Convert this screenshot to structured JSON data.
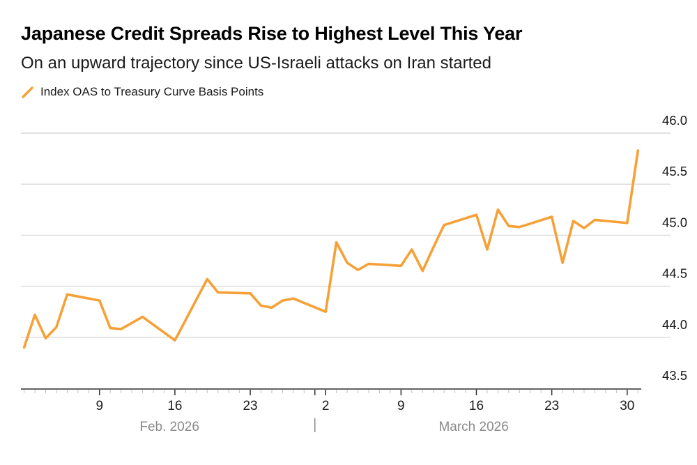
{
  "header": {
    "title": "Japanese Credit Spreads Rise to Highest Level This Year",
    "subtitle": "On an upward trajectory since US-Israeli attacks on Iran started"
  },
  "legend": {
    "label": "Index OAS to Treasury Curve Basis Points",
    "swatch_color": "#F6A137"
  },
  "chart_data": {
    "type": "line",
    "title": "Japanese Credit Spreads Rise to Highest Level This Year",
    "subtitle": "On an upward trajectory since US-Israeli attacks on Iran started",
    "grid": true,
    "legend_position": "top-left",
    "line_color": "#F6A137",
    "grid_color": "#D9D9D9",
    "axis_color": "#2e2e2e",
    "minor_tick_color": "#c0c0c0",
    "month_label_color": "#8a8a8a",
    "ylabel": "Index OAS to Treasury Curve Basis Points",
    "y_axis": {
      "side": "right",
      "range": [
        43.5,
        46.0
      ],
      "ticks": [
        {
          "value": 46.0,
          "label": "46.0"
        },
        {
          "value": 45.5,
          "label": "45.5"
        },
        {
          "value": 45.0,
          "label": "45.0"
        },
        {
          "value": 44.5,
          "label": "44.5"
        },
        {
          "value": 44.0,
          "label": "44.0"
        },
        {
          "value": 43.5,
          "label": "43.5"
        }
      ]
    },
    "x_axis": {
      "start_date": "2026-02-02",
      "end_date": "2026-03-31",
      "minor_tick_every_days": 1,
      "major_ticks": [
        {
          "date": "2026-02-09",
          "label": "9"
        },
        {
          "date": "2026-02-16",
          "label": "16"
        },
        {
          "date": "2026-02-23",
          "label": "23"
        },
        {
          "date": "2026-03-01",
          "label": ""
        },
        {
          "date": "2026-03-02",
          "label": "2"
        },
        {
          "date": "2026-03-09",
          "label": "9"
        },
        {
          "date": "2026-03-16",
          "label": "16"
        },
        {
          "date": "2026-03-23",
          "label": "23"
        },
        {
          "date": "2026-03-30",
          "label": "30"
        }
      ],
      "month_labels": [
        {
          "text": "Feb. 2026",
          "center_date": "2026-02-15T12:00:00"
        },
        {
          "text": "March 2026",
          "center_date": "2026-03-15T18:00:00"
        }
      ],
      "separator_date": "2026-03-01"
    },
    "series": [
      {
        "name": "Index OAS to Treasury Curve Basis Points",
        "points": [
          {
            "date": "2026-02-02",
            "value": 43.9
          },
          {
            "date": "2026-02-03",
            "value": 44.22
          },
          {
            "date": "2026-02-04",
            "value": 43.99
          },
          {
            "date": "2026-02-05",
            "value": 44.1
          },
          {
            "date": "2026-02-06",
            "value": 44.42
          },
          {
            "date": "2026-02-09",
            "value": 44.36
          },
          {
            "date": "2026-02-10",
            "value": 44.09
          },
          {
            "date": "2026-02-11",
            "value": 44.08
          },
          {
            "date": "2026-02-12",
            "value": 44.14
          },
          {
            "date": "2026-02-13",
            "value": 44.2
          },
          {
            "date": "2026-02-16",
            "value": 43.97
          },
          {
            "date": "2026-02-17",
            "value": 44.17
          },
          {
            "date": "2026-02-18",
            "value": 44.37
          },
          {
            "date": "2026-02-19",
            "value": 44.57
          },
          {
            "date": "2026-02-20",
            "value": 44.44
          },
          {
            "date": "2026-02-23",
            "value": 44.43
          },
          {
            "date": "2026-02-24",
            "value": 44.31
          },
          {
            "date": "2026-02-25",
            "value": 44.29
          },
          {
            "date": "2026-02-26",
            "value": 44.36
          },
          {
            "date": "2026-02-27",
            "value": 44.38
          },
          {
            "date": "2026-03-02",
            "value": 44.25
          },
          {
            "date": "2026-03-03",
            "value": 44.93
          },
          {
            "date": "2026-03-04",
            "value": 44.73
          },
          {
            "date": "2026-03-05",
            "value": 44.66
          },
          {
            "date": "2026-03-06",
            "value": 44.72
          },
          {
            "date": "2026-03-09",
            "value": 44.7
          },
          {
            "date": "2026-03-10",
            "value": 44.86
          },
          {
            "date": "2026-03-11",
            "value": 44.65
          },
          {
            "date": "2026-03-12",
            "value": 44.88
          },
          {
            "date": "2026-03-13",
            "value": 45.1
          },
          {
            "date": "2026-03-16",
            "value": 45.2
          },
          {
            "date": "2026-03-17",
            "value": 44.86
          },
          {
            "date": "2026-03-18",
            "value": 45.25
          },
          {
            "date": "2026-03-19",
            "value": 45.09
          },
          {
            "date": "2026-03-20",
            "value": 45.08
          },
          {
            "date": "2026-03-23",
            "value": 45.18
          },
          {
            "date": "2026-03-24",
            "value": 44.73
          },
          {
            "date": "2026-03-25",
            "value": 45.14
          },
          {
            "date": "2026-03-26",
            "value": 45.07
          },
          {
            "date": "2026-03-27",
            "value": 45.15
          },
          {
            "date": "2026-03-30",
            "value": 45.12
          },
          {
            "date": "2026-03-31",
            "value": 45.83
          }
        ]
      }
    ]
  }
}
